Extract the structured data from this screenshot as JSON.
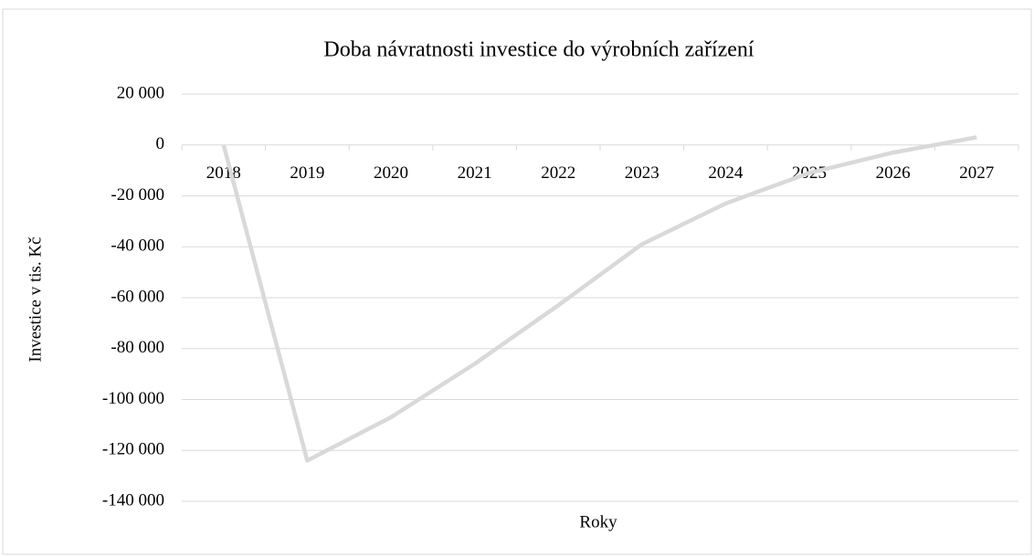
{
  "chart_data": {
    "type": "line",
    "title": "Doba návratnosti investice do výrobních zařízení",
    "x_label": "Roky",
    "y_label": "Investice v tis. Kč",
    "categories": [
      "2018",
      "2019",
      "2020",
      "2021",
      "2022",
      "2023",
      "2024",
      "2025",
      "2026",
      "2027"
    ],
    "series": [
      {
        "color": "#d9d9d9",
        "values": [
          0,
          -124000,
          -107000,
          -86000,
          -63000,
          -39000,
          -23000,
          -11000,
          -3000,
          3000
        ]
      }
    ],
    "ylim": [
      -140000,
      20000
    ],
    "yticks": [
      {
        "value": -140000,
        "label": "-140 000"
      },
      {
        "value": -120000,
        "label": "-120 000"
      },
      {
        "value": -100000,
        "label": "-100 000"
      },
      {
        "value": -80000,
        "label": "-80 000"
      },
      {
        "value": -60000,
        "label": "-60 000"
      },
      {
        "value": -40000,
        "label": "-40 000"
      },
      {
        "value": -20000,
        "label": "-20 000"
      },
      0,
      {
        "value": 20000,
        "label": "20 000"
      }
    ],
    "grid": true
  }
}
